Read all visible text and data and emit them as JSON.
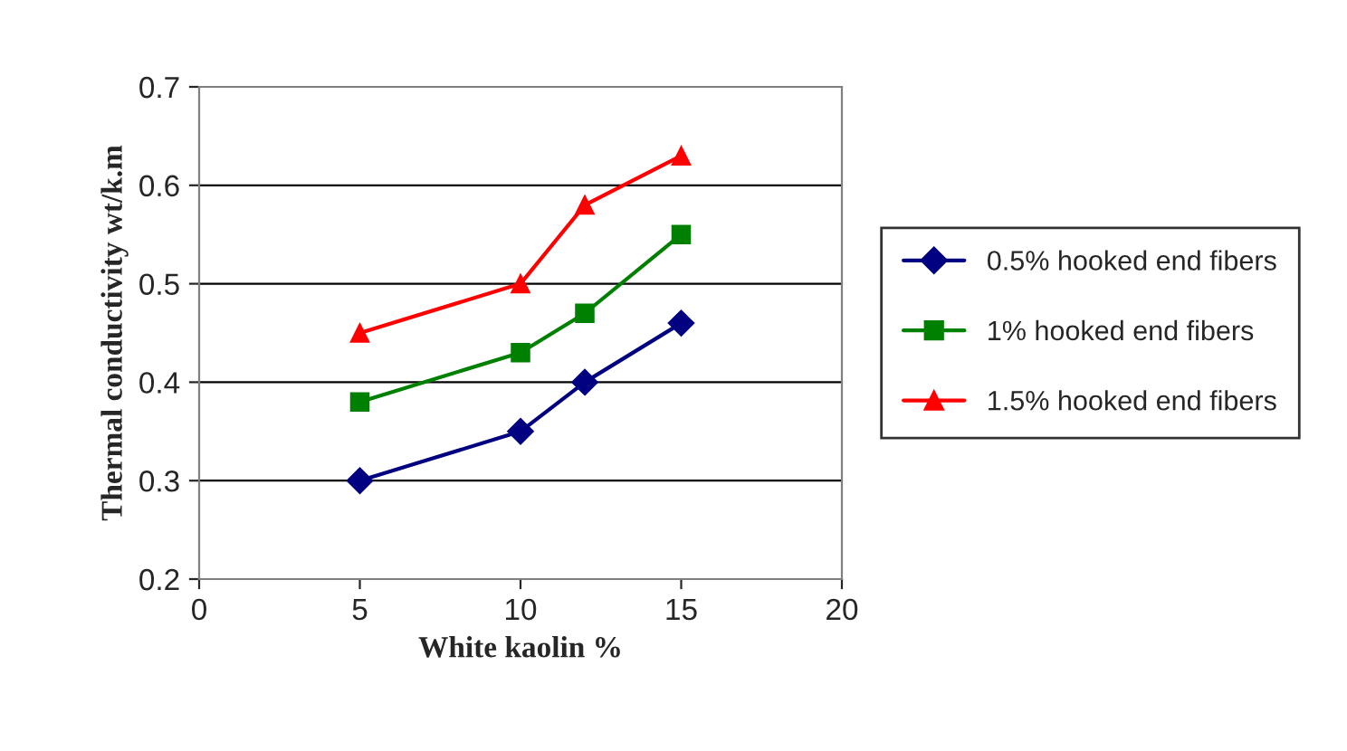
{
  "chart_data": {
    "type": "line",
    "xlabel": "White kaolin %",
    "ylabel": "Thermal conductivity wt/k.m",
    "x": [
      5,
      10,
      12,
      15
    ],
    "series": [
      {
        "name": "0.5% hooked end fibers",
        "color": "#000080",
        "marker": "diamond",
        "values": [
          0.3,
          0.35,
          0.4,
          0.46
        ]
      },
      {
        "name": "1% hooked end fibers",
        "color": "#008000",
        "marker": "square",
        "values": [
          0.38,
          0.43,
          0.47,
          0.55
        ]
      },
      {
        "name": "1.5% hooked end fibers",
        "color": "#ff0000",
        "marker": "triangle",
        "values": [
          0.45,
          0.5,
          0.58,
          0.63
        ]
      }
    ],
    "xlim": [
      0,
      20
    ],
    "xticks": [
      0,
      5,
      10,
      15,
      20
    ],
    "ylim": [
      0.2,
      0.7
    ],
    "yticks": [
      {
        "value": 0.2,
        "label": "0.2"
      },
      {
        "value": 0.3,
        "label": "0.3"
      },
      {
        "value": 0.4,
        "label": "0.4"
      },
      {
        "value": 0.5,
        "label": "0.5"
      },
      {
        "value": 0.6,
        "label": "0.6"
      },
      {
        "value": 0.7,
        "label": "0.7"
      }
    ],
    "grid": "y",
    "legend": "right"
  }
}
